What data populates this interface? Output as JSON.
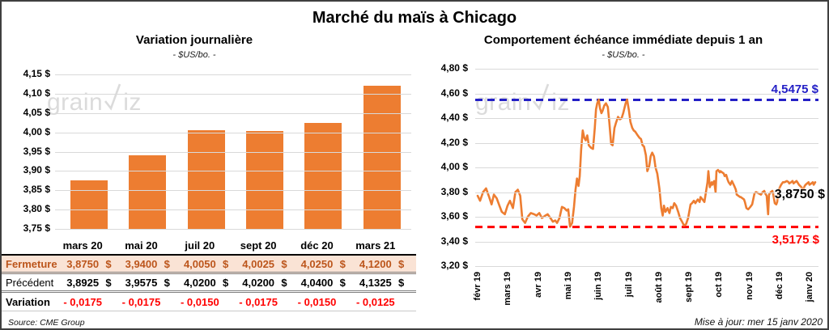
{
  "page": {
    "title": "Marché du maïs à Chicago",
    "source_note": "Source: CME Group",
    "update_note": "Mise à jour: mer 15 janv 2020",
    "watermark_prefix": "grain",
    "watermark_suffix": "iz"
  },
  "colors": {
    "accent_orange": "#ed7d31",
    "threshold_blue": "#2420c6",
    "threshold_red": "#ff0000",
    "grid": "#d9d9d9",
    "fermeture_bg": "#fae3d5",
    "fermeture_text": "#bc551b",
    "variation_red": "#ff0000"
  },
  "chart_data": [
    {
      "type": "bar",
      "title": "Variation journalière",
      "subtitle": "- $US/bo. -",
      "categories": [
        "mars 20",
        "mai 20",
        "juil 20",
        "sept 20",
        "déc 20",
        "mars 21"
      ],
      "values": [
        3.875,
        3.94,
        4.005,
        4.0025,
        4.025,
        4.12
      ],
      "ylim": [
        3.75,
        4.15
      ],
      "ytick_labels": [
        "4,15 $",
        "4,10 $",
        "4,05 $",
        "4,00 $",
        "3,95 $",
        "3,90 $",
        "3,85 $",
        "3,80 $",
        "3,75 $"
      ],
      "bar_color": "#ed7d31",
      "grid": true
    },
    {
      "type": "line",
      "title": "Comportement échéance immédiate depuis 1 an",
      "subtitle": "- $US/bo. -",
      "x_labels": [
        "févr 19",
        "mars 19",
        "avr 19",
        "mai 19",
        "juin 19",
        "juil 19",
        "août 19",
        "sept 19",
        "oct 19",
        "nov 19",
        "déc 19",
        "janv 20"
      ],
      "ylim": [
        3.2,
        4.8
      ],
      "ytick_labels": [
        "4,80 $",
        "4,60 $",
        "4,40 $",
        "4,20 $",
        "4,00 $",
        "3,80 $",
        "3,60 $",
        "3,40 $",
        "3,20 $"
      ],
      "grid": true,
      "legend": "none",
      "hlines": [
        {
          "value": 4.5475,
          "label": "4,5475 $",
          "color": "#2420c6",
          "style": "dashed"
        },
        {
          "value": 3.5175,
          "label": "3,5175 $",
          "color": "#ff0000",
          "style": "dashed"
        }
      ],
      "last_point_label": {
        "value": 3.875,
        "label": "3,8750 $",
        "color": "#000000"
      },
      "series": [
        {
          "name": "échéance immédiate",
          "color": "#ed7d31",
          "points": [
            [
              0,
              3.77
            ],
            [
              0.08,
              3.73
            ],
            [
              0.18,
              3.8
            ],
            [
              0.28,
              3.83
            ],
            [
              0.38,
              3.76
            ],
            [
              0.46,
              3.7
            ],
            [
              0.54,
              3.78
            ],
            [
              0.63,
              3.75
            ],
            [
              0.72,
              3.69
            ],
            [
              0.8,
              3.64
            ],
            [
              0.9,
              3.62
            ],
            [
              0.99,
              3.69
            ],
            [
              1.07,
              3.73
            ],
            [
              1.17,
              3.67
            ],
            [
              1.25,
              3.8
            ],
            [
              1.33,
              3.82
            ],
            [
              1.41,
              3.77
            ],
            [
              1.48,
              3.58
            ],
            [
              1.57,
              3.55
            ],
            [
              1.66,
              3.6
            ],
            [
              1.76,
              3.63
            ],
            [
              1.87,
              3.62
            ],
            [
              1.95,
              3.61
            ],
            [
              2.04,
              3.63
            ],
            [
              2.13,
              3.59
            ],
            [
              2.24,
              3.61
            ],
            [
              2.32,
              3.62
            ],
            [
              2.41,
              3.59
            ],
            [
              2.49,
              3.56
            ],
            [
              2.57,
              3.57
            ],
            [
              2.63,
              3.55
            ],
            [
              2.71,
              3.59
            ],
            [
              2.79,
              3.68
            ],
            [
              2.87,
              3.67
            ],
            [
              2.95,
              3.65
            ],
            [
              3,
              3.66
            ],
            [
              3.06,
              3.52
            ],
            [
              3.13,
              3.55
            ],
            [
              3.19,
              3.68
            ],
            [
              3.24,
              3.82
            ],
            [
              3.29,
              3.91
            ],
            [
              3.34,
              3.85
            ],
            [
              3.38,
              3.93
            ],
            [
              3.43,
              4.15
            ],
            [
              3.48,
              4.3
            ],
            [
              3.53,
              4.24
            ],
            [
              3.58,
              4.22
            ],
            [
              3.63,
              4.26
            ],
            [
              3.68,
              4.18
            ],
            [
              3.75,
              4.16
            ],
            [
              3.82,
              4.15
            ],
            [
              3.88,
              4.32
            ],
            [
              3.92,
              4.47
            ],
            [
              3.96,
              4.52
            ],
            [
              4.01,
              4.55
            ],
            [
              4.05,
              4.48
            ],
            [
              4.1,
              4.44
            ],
            [
              4.14,
              4.46
            ],
            [
              4.19,
              4.5
            ],
            [
              4.25,
              4.52
            ],
            [
              4.31,
              4.49
            ],
            [
              4.36,
              4.37
            ],
            [
              4.42,
              4.19
            ],
            [
              4.47,
              4.18
            ],
            [
              4.53,
              4.32
            ],
            [
              4.58,
              4.36
            ],
            [
              4.65,
              4.41
            ],
            [
              4.71,
              4.39
            ],
            [
              4.77,
              4.4
            ],
            [
              4.82,
              4.44
            ],
            [
              4.9,
              4.52
            ],
            [
              4.95,
              4.55
            ],
            [
              5.01,
              4.46
            ],
            [
              5.06,
              4.37
            ],
            [
              5.12,
              4.32
            ],
            [
              5.17,
              4.3
            ],
            [
              5.22,
              4.29
            ],
            [
              5.3,
              4.26
            ],
            [
              5.36,
              4.24
            ],
            [
              5.41,
              4.23
            ],
            [
              5.46,
              4.18
            ],
            [
              5.51,
              4.17
            ],
            [
              5.57,
              4.1
            ],
            [
              5.62,
              3.97
            ],
            [
              5.68,
              4.01
            ],
            [
              5.73,
              4.09
            ],
            [
              5.78,
              4.12
            ],
            [
              5.84,
              4.09
            ],
            [
              5.89,
              4
            ],
            [
              5.95,
              3.95
            ],
            [
              6.02,
              3.83
            ],
            [
              6.08,
              3.67
            ],
            [
              6.13,
              3.61
            ],
            [
              6.17,
              3.69
            ],
            [
              6.22,
              3.64
            ],
            [
              6.29,
              3.67
            ],
            [
              6.35,
              3.63
            ],
            [
              6.4,
              3.68
            ],
            [
              6.46,
              3.67
            ],
            [
              6.51,
              3.71
            ],
            [
              6.57,
              3.69
            ],
            [
              6.64,
              3.64
            ],
            [
              6.7,
              3.59
            ],
            [
              6.77,
              3.56
            ],
            [
              6.83,
              3.53
            ],
            [
              6.9,
              3.54
            ],
            [
              6.97,
              3.59
            ],
            [
              7.05,
              3.7
            ],
            [
              7.1,
              3.71
            ],
            [
              7.16,
              3.73
            ],
            [
              7.21,
              3.71
            ],
            [
              7.29,
              3.74
            ],
            [
              7.35,
              3.72
            ],
            [
              7.38,
              3.76
            ],
            [
              7.48,
              3.73
            ],
            [
              7.51,
              3.72
            ],
            [
              7.61,
              3.88
            ],
            [
              7.64,
              3.97
            ],
            [
              7.69,
              3.84
            ],
            [
              7.75,
              3.88
            ],
            [
              7.77,
              3.86
            ],
            [
              7.83,
              3.89
            ],
            [
              7.88,
              3.8
            ],
            [
              7.91,
              3.97
            ],
            [
              7.96,
              3.98
            ],
            [
              8.02,
              3.96
            ],
            [
              8.04,
              3.97
            ],
            [
              8.15,
              3.95
            ],
            [
              8.18,
              3.93
            ],
            [
              8.23,
              3.94
            ],
            [
              8.28,
              3.9
            ],
            [
              8.31,
              3.88
            ],
            [
              8.37,
              3.86
            ],
            [
              8.42,
              3.89
            ],
            [
              8.5,
              3.85
            ],
            [
              8.55,
              3.82
            ],
            [
              8.58,
              3.78
            ],
            [
              8.69,
              3.76
            ],
            [
              8.71,
              3.76
            ],
            [
              8.82,
              3.74
            ],
            [
              8.85,
              3.72
            ],
            [
              8.9,
              3.67
            ],
            [
              8.96,
              3.66
            ],
            [
              9.03,
              3.68
            ],
            [
              9.09,
              3.7
            ],
            [
              9.17,
              3.79
            ],
            [
              9.22,
              3.8
            ],
            [
              9.3,
              3.79
            ],
            [
              9.38,
              3.78
            ],
            [
              9.44,
              3.8
            ],
            [
              9.49,
              3.81
            ],
            [
              9.52,
              3.79
            ],
            [
              9.57,
              3.77
            ],
            [
              9.62,
              3.62
            ],
            [
              9.65,
              3.78
            ],
            [
              9.71,
              3.8
            ],
            [
              9.76,
              3.81
            ],
            [
              9.79,
              3.78
            ],
            [
              9.84,
              3.71
            ],
            [
              9.89,
              3.7
            ],
            [
              9.92,
              3.72
            ],
            [
              9.97,
              3.82
            ],
            [
              10.03,
              3.85
            ],
            [
              10.05,
              3.86
            ],
            [
              10.11,
              3.88
            ],
            [
              10.16,
              3.88
            ],
            [
              10.24,
              3.89
            ],
            [
              10.3,
              3.88
            ],
            [
              10.32,
              3.87
            ],
            [
              10.38,
              3.88
            ],
            [
              10.43,
              3.89
            ],
            [
              10.46,
              3.87
            ],
            [
              10.51,
              3.88
            ],
            [
              10.56,
              3.89
            ],
            [
              10.59,
              3.88
            ],
            [
              10.64,
              3.86
            ],
            [
              10.72,
              3.84
            ],
            [
              10.78,
              3.82
            ],
            [
              10.83,
              3.85
            ],
            [
              10.86,
              3.86
            ],
            [
              10.91,
              3.87
            ],
            [
              10.96,
              3.88
            ],
            [
              10.99,
              3.86
            ],
            [
              11.05,
              3.87
            ],
            [
              11.1,
              3.88
            ],
            [
              11.13,
              3.86
            ],
            [
              11.18,
              3.88
            ]
          ]
        }
      ]
    }
  ],
  "table": {
    "currency": "$",
    "header": [
      "mars 20",
      "mai 20",
      "juil 20",
      "sept 20",
      "déc 20",
      "mars 21"
    ],
    "rows": [
      {
        "label": "Fermeture",
        "style": "fermeture",
        "currency": true,
        "values": [
          "3,8750",
          "3,9400",
          "4,0050",
          "4,0025",
          "4,0250",
          "4,1200"
        ]
      },
      {
        "label": "Précédent",
        "style": "precedent",
        "currency": true,
        "values": [
          "3,8925",
          "3,9575",
          "4,0200",
          "4,0200",
          "4,0400",
          "4,1325"
        ]
      },
      {
        "label": "Variation",
        "style": "variation",
        "currency": false,
        "values": [
          "- 0,0175",
          "- 0,0175",
          "- 0,0150",
          "- 0,0175",
          "- 0,0150",
          "- 0,0125"
        ]
      }
    ]
  }
}
